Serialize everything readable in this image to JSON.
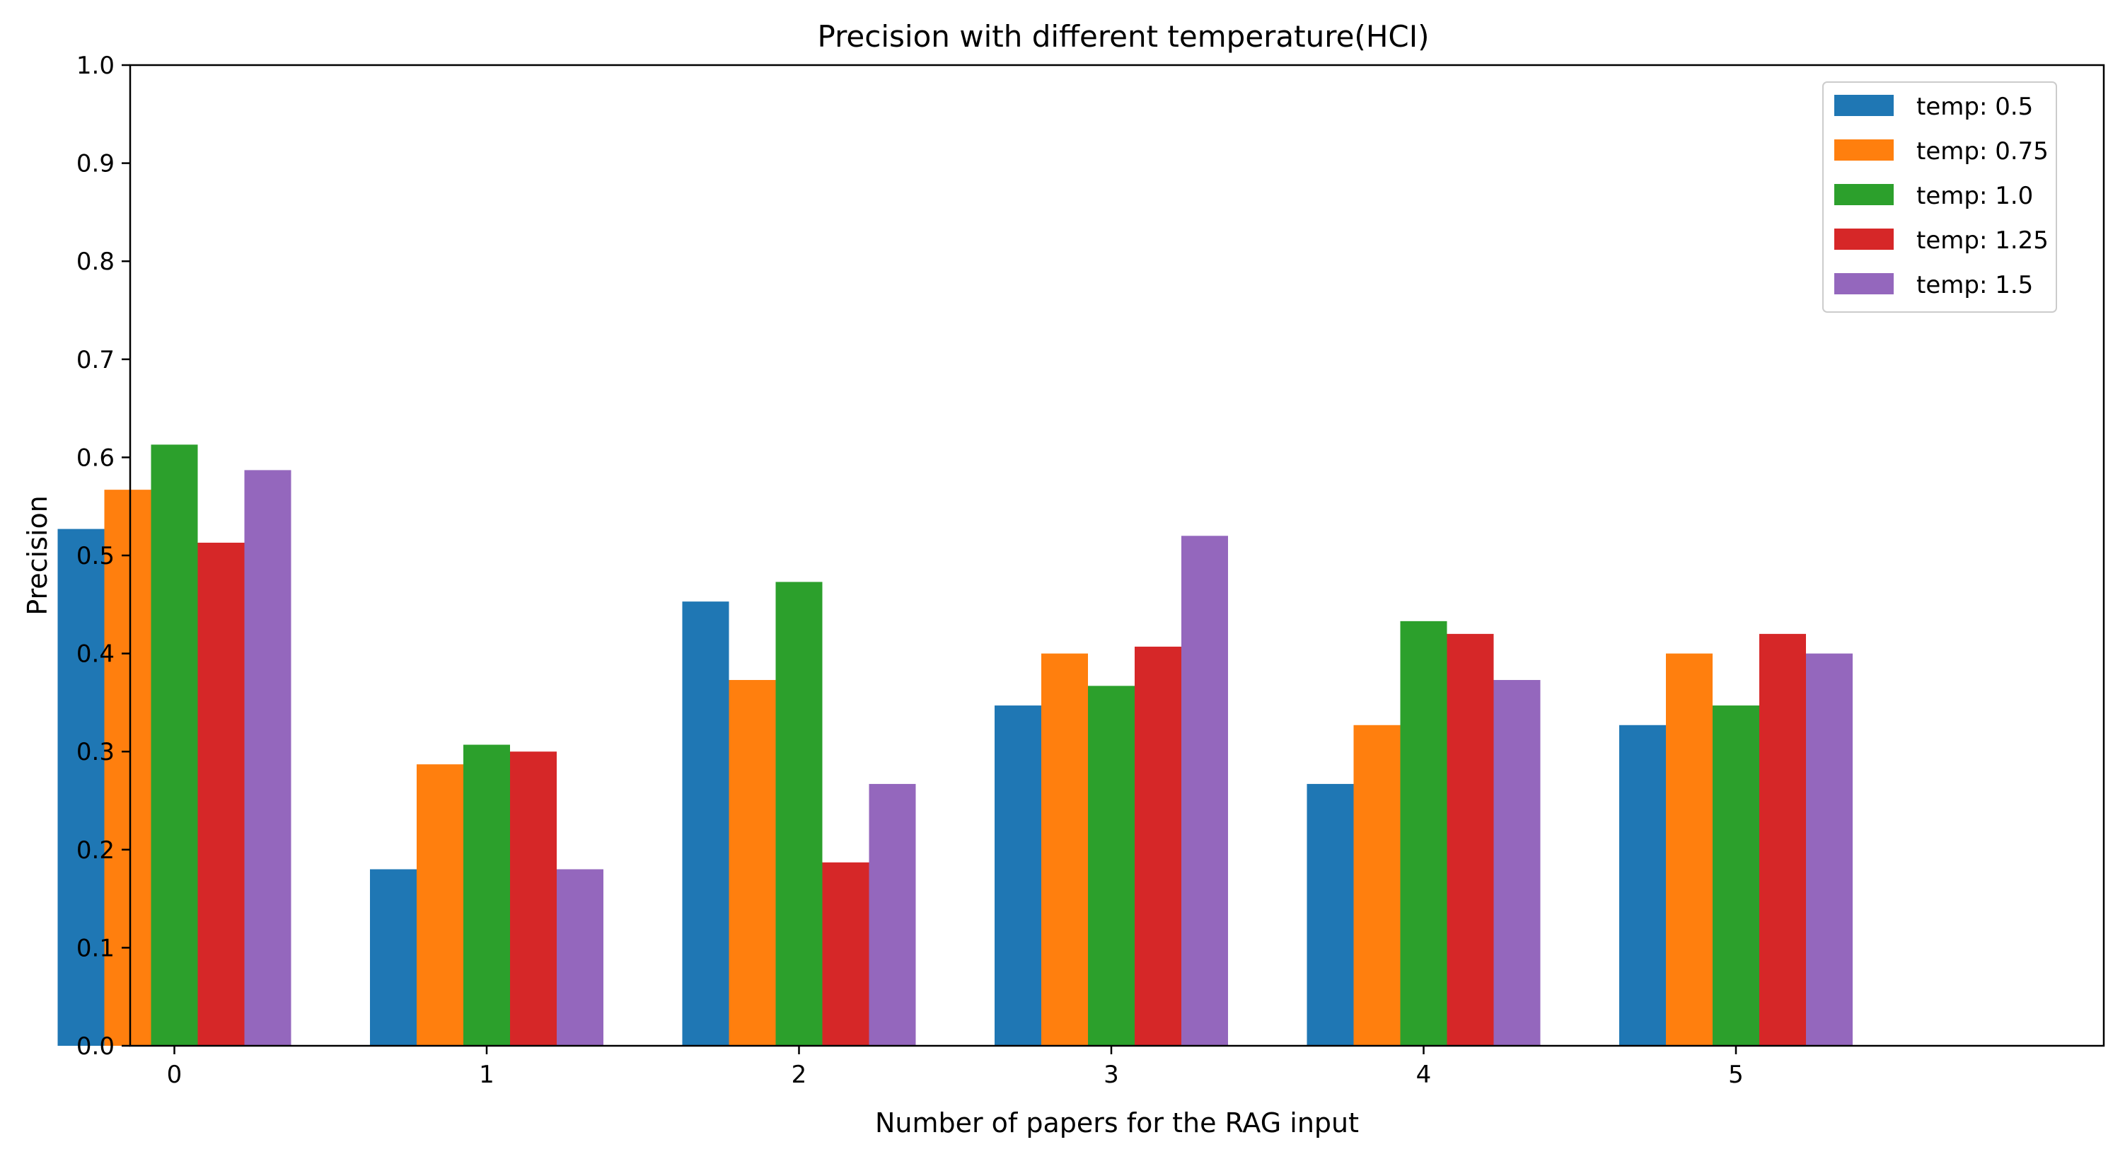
{
  "chart_data": {
    "type": "bar",
    "title": "Precision with different temperature(HCI)",
    "xlabel": "Number of papers for the RAG input",
    "ylabel": "Precision",
    "categories": [
      "0",
      "1",
      "2",
      "3",
      "4",
      "5"
    ],
    "ylim": [
      0,
      1.0
    ],
    "yticks": [
      "0.0",
      "0.1",
      "0.2",
      "0.3",
      "0.4",
      "0.5",
      "0.6",
      "0.7",
      "0.8",
      "0.9",
      "1.0"
    ],
    "grid": false,
    "legend": "upper-right",
    "series": [
      {
        "name": "temp: 0.5",
        "color": "#1f77b4",
        "values": [
          0.527,
          0.18,
          0.453,
          0.347,
          0.267,
          0.327
        ]
      },
      {
        "name": "temp: 0.75",
        "color": "#ff7f0e",
        "values": [
          0.567,
          0.287,
          0.373,
          0.4,
          0.327,
          0.4
        ]
      },
      {
        "name": "temp: 1.0",
        "color": "#2ca02c",
        "values": [
          0.613,
          0.307,
          0.473,
          0.367,
          0.433,
          0.347
        ]
      },
      {
        "name": "temp: 1.25",
        "color": "#d62728",
        "values": [
          0.513,
          0.3,
          0.187,
          0.407,
          0.42,
          0.42
        ]
      },
      {
        "name": "temp: 1.5",
        "color": "#9467bd",
        "values": [
          0.587,
          0.18,
          0.267,
          0.52,
          0.373,
          0.4
        ]
      }
    ]
  }
}
